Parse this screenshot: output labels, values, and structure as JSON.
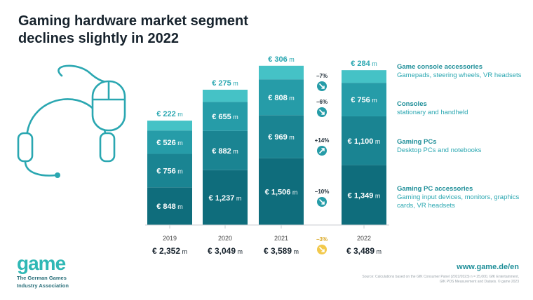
{
  "title": "Gaming hardware market segment declines slightly in 2022",
  "currency_symbol": "€",
  "unit": "m",
  "colors": {
    "game_console_accessories": "#45c2c6",
    "consoles": "#269ca8",
    "gaming_pcs": "#1a8492",
    "gaming_pc_accessories": "#0f6d7c",
    "accent_text": "#2aa7b1",
    "change_yellow": "#f2c94c"
  },
  "legend": [
    {
      "title": "Game console accessories",
      "desc": "Gamepads, steering wheels, VR headsets"
    },
    {
      "title": "Consoles",
      "desc": "stationary and handheld"
    },
    {
      "title": "Gaming PCs",
      "desc": "Desktop PCs and notebooks"
    },
    {
      "title": "Gaming PC accessories",
      "desc": "Gaming input devices, monitors, graphics cards, VR headsets"
    }
  ],
  "chart_data": {
    "type": "bar",
    "stacked": true,
    "categories": [
      "2019",
      "2020",
      "2021",
      "2022"
    ],
    "series": [
      {
        "name": "Gaming PC accessories",
        "values": [
          848,
          1237,
          1506,
          1349
        ],
        "labels": [
          "848",
          "1,237",
          "1,506",
          "1,349"
        ]
      },
      {
        "name": "Gaming PCs",
        "values": [
          756,
          882,
          969,
          1100
        ],
        "labels": [
          "756",
          "882",
          "969",
          "1,100"
        ]
      },
      {
        "name": "Consoles",
        "values": [
          526,
          655,
          808,
          756
        ],
        "labels": [
          "526",
          "655",
          "808",
          "756"
        ]
      },
      {
        "name": "Game console accessories",
        "values": [
          222,
          275,
          306,
          284
        ],
        "labels": [
          "222",
          "275",
          "306",
          "284"
        ]
      }
    ],
    "totals": [
      "2,352",
      "3,049",
      "3,589",
      "3,489"
    ],
    "changes_2021_2022": [
      {
        "series": "Game console accessories",
        "label": "−7%",
        "direction": "down"
      },
      {
        "series": "Consoles",
        "label": "−6%",
        "direction": "down"
      },
      {
        "series": "Gaming PCs",
        "label": "+14%",
        "direction": "up"
      },
      {
        "series": "Gaming PC accessories",
        "label": "−10%",
        "direction": "down"
      }
    ],
    "total_change": {
      "label": "−3%",
      "direction": "down"
    }
  },
  "logo": {
    "word": "game",
    "subtitle_line1": "The German Games",
    "subtitle_line2": "Industry Association"
  },
  "url": "www.game.de/en",
  "source": "Source: Calculations based on the GfK Consumer Panel (2022/2023) n = 25,000, GfK Entertainment, GfK POS Measurement and Dataxis. © game 2023"
}
